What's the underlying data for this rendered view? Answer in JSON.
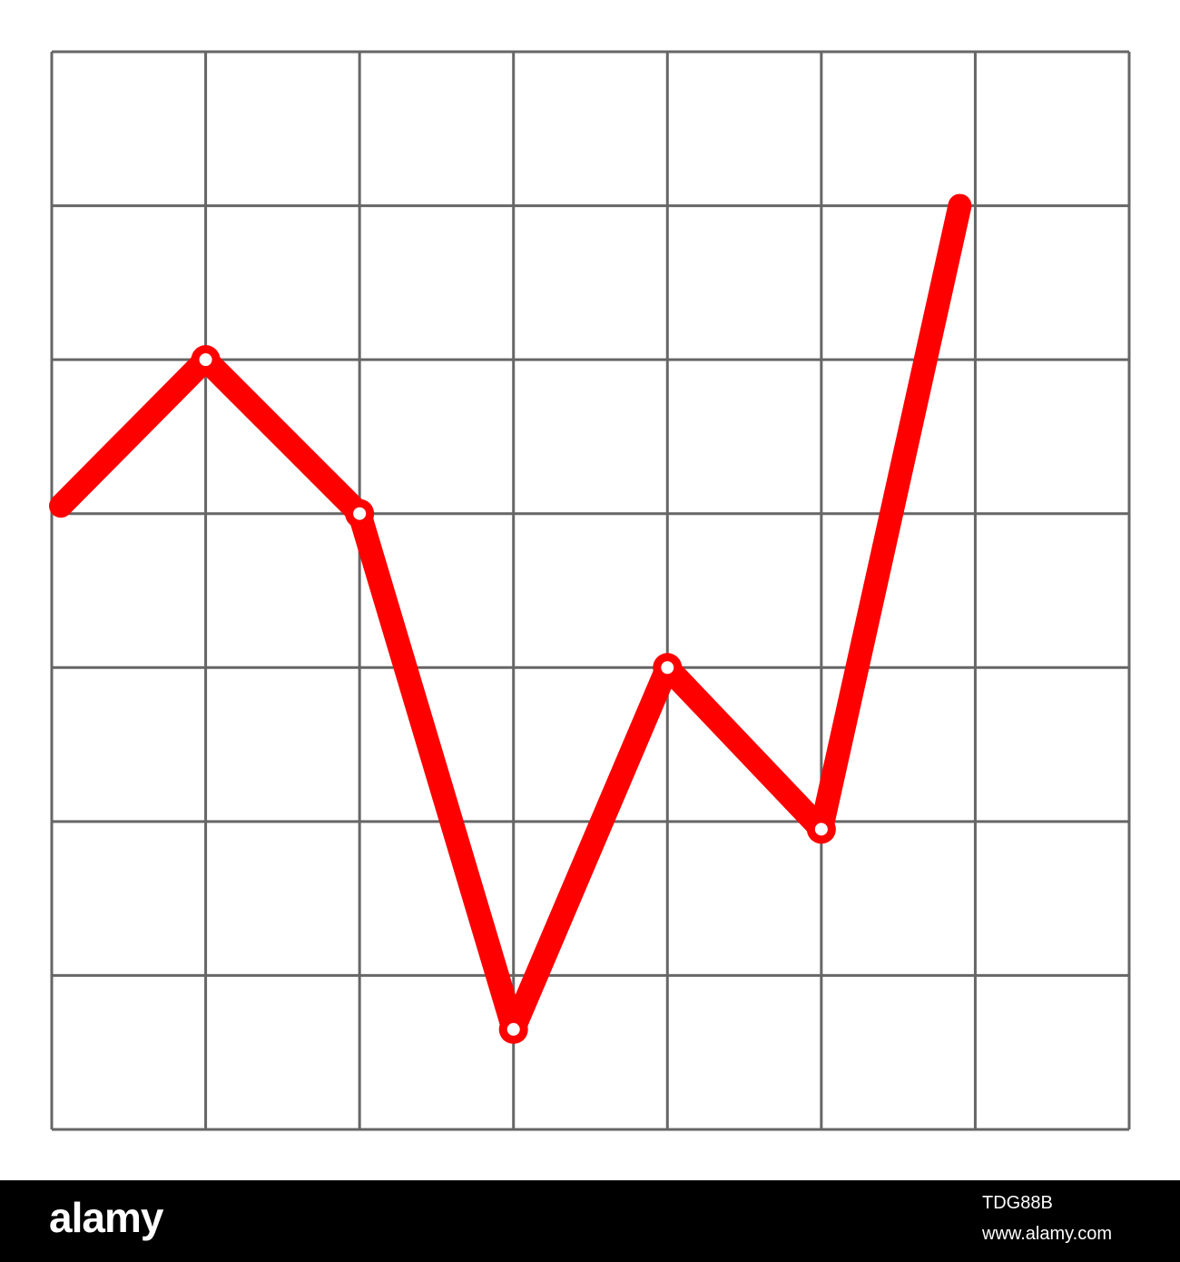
{
  "chart_data": {
    "type": "line",
    "title": "",
    "xlabel": "",
    "ylabel": "",
    "grid": true,
    "x": [
      0,
      1,
      2,
      3,
      4,
      5,
      6
    ],
    "xlim": [
      0,
      7
    ],
    "ylim": [
      0,
      7
    ],
    "series": [
      {
        "values": [
          4.05,
          5.0,
          4.0,
          0.65,
          3.0,
          1.95,
          6.0
        ],
        "markers": [
          false,
          true,
          true,
          true,
          true,
          true,
          false
        ]
      }
    ],
    "colors": {
      "line": "#ff0000",
      "grid": "#666666",
      "marker_fill": "#ffffff"
    }
  },
  "footer": {
    "logo": "alamy",
    "image_id": "TDG88B",
    "url": "www.alamy.com"
  }
}
